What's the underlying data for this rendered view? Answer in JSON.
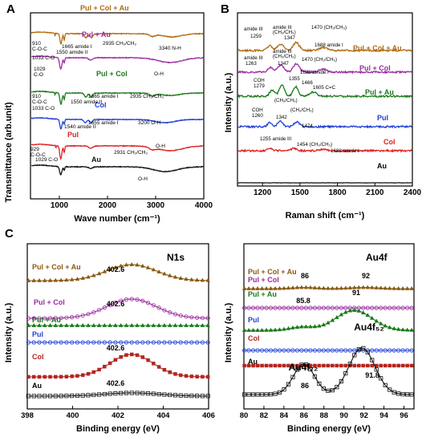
{
  "chart_data": [
    {
      "panel_label": "A",
      "type": "line",
      "xlabel": "Wave number (cm⁻¹)",
      "ylabel": "Transmittance (arb.unit)",
      "xlim": [
        400,
        4000
      ],
      "x_ticks": [
        "1000",
        "2000",
        "3000",
        "4000"
      ],
      "colors": {
        "Pul + Col + Au": "#b06a10",
        "Pul + Au": "#9b2aa0",
        "Pul + Col": "#1a7a1a",
        "Col": "#1f3fd6",
        "Pul": "#dd1f1f",
        "Au": "#111111"
      },
      "series": [
        {
          "name": "Pul + Col + Au",
          "color": "#b06a10",
          "peaks": [
            1033,
            1550,
            1665,
            2935,
            3340
          ],
          "annotations": [
            "910",
            "C-O-C",
            "1033 C-O",
            "1550 amide II",
            "1665 amide I",
            "2935 CH₂/CH₃",
            "3340 N-H"
          ]
        },
        {
          "name": "Pul + Au",
          "color": "#9b2aa0",
          "peaks": [
            1029,
            3300
          ],
          "annotations": [
            "1029",
            "C-O",
            "O-H"
          ]
        },
        {
          "name": "Pul + Col",
          "color": "#1a7a1a",
          "peaks": [
            1033,
            1550,
            1665,
            2935
          ],
          "annotations": [
            "910",
            "C-O-C",
            "1033 C-O",
            "1550 amide II",
            "1665 amide I",
            "2935 CH₂/CH₃"
          ]
        },
        {
          "name": "Col",
          "color": "#1f3fd6",
          "peaks": [
            1540,
            1655,
            3200
          ],
          "annotations": [
            "1540 amide II",
            "1655 amide I",
            "3200 O-H"
          ]
        },
        {
          "name": "Pul",
          "color": "#dd1f1f",
          "peaks": [
            929,
            1029,
            2931,
            3300
          ],
          "annotations": [
            "929",
            "C-O-C",
            "2931 CH₂/CH₃",
            "O-H"
          ]
        },
        {
          "name": "Au",
          "color": "#111111",
          "peaks": [
            1029,
            3200
          ],
          "annotations": [
            "1029 C-O",
            "O-H"
          ]
        }
      ]
    },
    {
      "panel_label": "B",
      "type": "line",
      "xlabel": "Raman shift (cm⁻¹)",
      "ylabel": "Intensity (a.u.)",
      "xlim": [
        1000,
        2400
      ],
      "x_ticks": [
        "1200",
        "1500",
        "1800",
        "2100",
        "2400"
      ],
      "series": [
        {
          "name": "Pul + Col + Au",
          "color": "#b06a10",
          "peaks": [
            1259,
            1347,
            1470,
            1688
          ],
          "annotations": [
            "amide III",
            "1259",
            "amide III",
            "(CH₂/CH₃)",
            "1347",
            "1470 (CH₂/CH₃)",
            "1688 amide I"
          ]
        },
        {
          "name": "Pul + Col",
          "color": "#9b2aa0",
          "peaks": [
            1263,
            1347,
            1470,
            1688
          ],
          "annotations": [
            "amide III",
            "1263",
            "amide III",
            "(CH₂/CH₃)",
            "1347",
            "1470 (CH₂/CH₃)",
            "1688 amide I"
          ]
        },
        {
          "name": "Pul + Au",
          "color": "#1a7a1a",
          "peaks": [
            1279,
            1355,
            1466,
            1605
          ],
          "annotations": [
            "COH",
            "1279",
            "1355",
            "1466",
            "(CH₂/CH₃)",
            "1605 C=C"
          ]
        },
        {
          "name": "Pul",
          "color": "#1f3fd6",
          "peaks": [
            1260,
            1342,
            1474
          ],
          "annotations": [
            "COH",
            "1260",
            "1342",
            "(CH₂/CH₃)",
            "1474"
          ]
        },
        {
          "name": "Col",
          "color": "#dd1f1f",
          "peaks": [
            1255,
            1454,
            1688
          ],
          "annotations": [
            "1255 amide III",
            "1454 (CH₂/CH₃)",
            "1688 amide I"
          ]
        },
        {
          "name": "Au",
          "color": "#111111",
          "peaks": [],
          "annotations": []
        }
      ]
    },
    {
      "panel_label": "C",
      "type": "line",
      "title": "N1s",
      "xlabel": "Binding energy (eV)",
      "ylabel": "Intensity (a.u.)",
      "xlim": [
        398,
        406
      ],
      "x_ticks": [
        "398",
        "400",
        "402",
        "404",
        "406"
      ],
      "series": [
        {
          "name": "Pul + Col + Au",
          "color": "#8a5a12",
          "marker": "triangle",
          "peak_x": 402.6,
          "peak_label": "402.6"
        },
        {
          "name": "Pul + Col",
          "color": "#9b2aa0",
          "marker": "circle-open",
          "peak_x": 402.6,
          "peak_label": "402.6"
        },
        {
          "name": "Pul + Au",
          "color": "#1a7a1a",
          "marker": "triangle",
          "flat": true
        },
        {
          "name": "Pul",
          "color": "#1f3fd6",
          "marker": "circle-open",
          "flat": true
        },
        {
          "name": "Col",
          "color": "#b3261e",
          "marker": "square",
          "peak_x": 402.6,
          "peak_label": "402.6"
        },
        {
          "name": "Au",
          "color": "#111111",
          "marker": "square-open",
          "peak_x": 402.6,
          "peak_label": "402.6"
        }
      ]
    },
    {
      "panel_label": "",
      "type": "line",
      "title": "Au4f",
      "xlabel": "Binding energy (eV)",
      "ylabel": "Intensity (a.u.)",
      "xlim": [
        80,
        97
      ],
      "x_ticks": [
        "80",
        "82",
        "84",
        "86",
        "88",
        "90",
        "92",
        "94",
        "96"
      ],
      "series": [
        {
          "name": "Pul + Col + Au",
          "color": "#8a5a12",
          "marker": "triangle",
          "peaks": [
            86,
            92
          ],
          "peak_labels": [
            "86",
            "92"
          ]
        },
        {
          "name": "Pul + Col",
          "color": "#9b2aa0",
          "marker": "circle-open",
          "flat": true
        },
        {
          "name": "Pul + Au",
          "color": "#1a7a1a",
          "marker": "triangle",
          "peaks": [
            85.8,
            91
          ],
          "peak_labels": [
            "85.8",
            "91"
          ]
        },
        {
          "name": "Pul",
          "color": "#1f3fd6",
          "marker": "circle-open",
          "flat": true
        },
        {
          "name": "Col",
          "color": "#b3261e",
          "marker": "square",
          "flat": true
        },
        {
          "name": "Au",
          "color": "#111111",
          "marker": "square-open",
          "peaks": [
            86,
            91.8
          ],
          "peak_labels": [
            "86",
            "91.8"
          ],
          "peak_names": [
            "Au4f₇₂",
            "Au4f₅₂"
          ]
        }
      ]
    }
  ]
}
